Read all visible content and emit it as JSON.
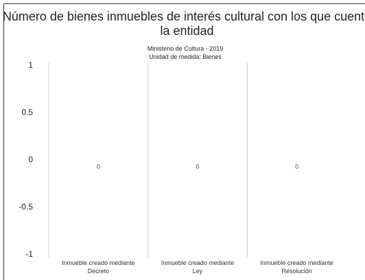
{
  "chart_data": {
    "type": "bar",
    "title": "Número de bienes inmuebles de interés cultural con los que cuenta la entidad",
    "subtitle": "Ministerio de Cultura - 2019",
    "unit_label": "Unidad de medida: Bienes",
    "categories": [
      "Inmueble creado mediante Decreto",
      "Inmueble creado mediante Ley",
      "Inmueble creado mediante Resolución"
    ],
    "values": [
      0,
      0,
      0
    ],
    "color": "#6cbcd6",
    "ylim": [
      -1,
      1
    ],
    "yticks": [
      -1,
      -0.5,
      0,
      0.5,
      1
    ],
    "grid": false
  }
}
